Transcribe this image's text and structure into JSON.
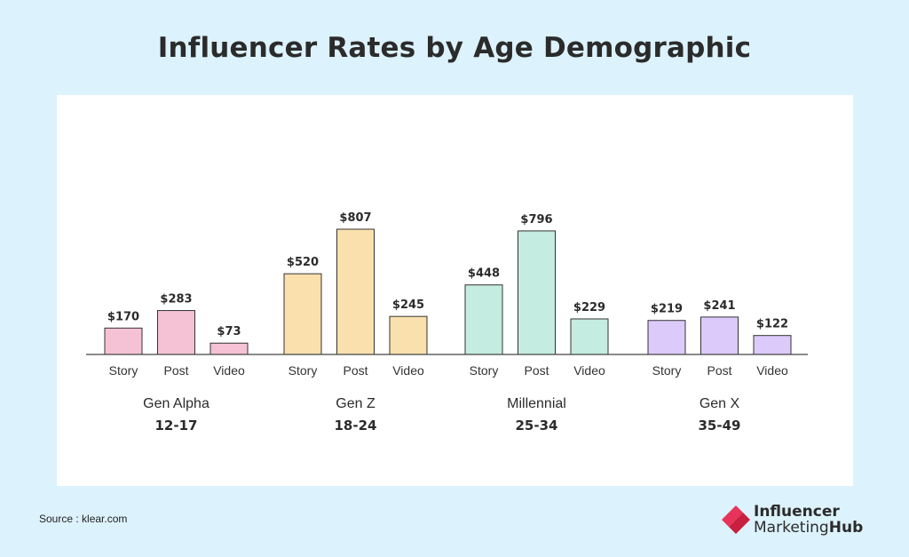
{
  "title": "Influencer Rates by Age Demographic",
  "source": "Source : klear.com",
  "brand": {
    "line1": "Influencer",
    "line2_part1": "Marketing",
    "line2_part2": "Hub",
    "logo_colors": [
      "#e8335a",
      "#c9203f"
    ]
  },
  "chart_data": {
    "type": "bar",
    "title": "Influencer Rates by Age Demographic",
    "xlabel": "",
    "ylabel": "",
    "ylim": [
      0,
      807
    ],
    "grid": false,
    "value_prefix": "$",
    "groups": [
      {
        "name": "Gen Alpha",
        "age": "12-17",
        "color": "#f5c1d5",
        "categories": [
          "Story",
          "Post",
          "Video"
        ],
        "values": [
          170,
          283,
          73
        ]
      },
      {
        "name": "Gen Z",
        "age": "18-24",
        "color": "#f9e0ad",
        "categories": [
          "Story",
          "Post",
          "Video"
        ],
        "values": [
          520,
          807,
          245
        ]
      },
      {
        "name": "Millennial",
        "age": "25-34",
        "color": "#c4ece0",
        "categories": [
          "Story",
          "Post",
          "Video"
        ],
        "values": [
          448,
          796,
          229
        ]
      },
      {
        "name": "Gen X",
        "age": "35-49",
        "color": "#dccbfa",
        "categories": [
          "Story",
          "Post",
          "Video"
        ],
        "values": [
          219,
          241,
          122
        ]
      }
    ]
  }
}
